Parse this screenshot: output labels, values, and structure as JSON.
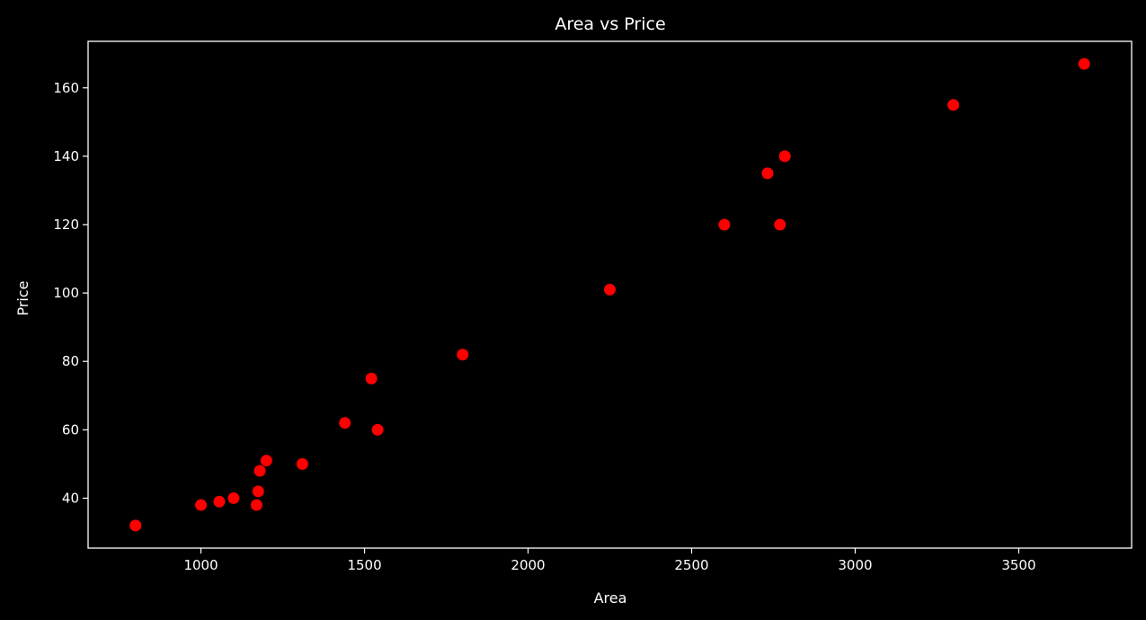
{
  "chart_data": {
    "type": "scatter",
    "title": "Area vs Price",
    "xlabel": "Area",
    "ylabel": "Price",
    "xlim": [
      655,
      3845
    ],
    "ylim": [
      25.4,
      173.6
    ],
    "xticks": [
      1000,
      1500,
      2000,
      2500,
      3000,
      3500
    ],
    "yticks": [
      40,
      60,
      80,
      100,
      120,
      140,
      160
    ],
    "grid": false,
    "background": "#000000",
    "axis_color": "#ffffff",
    "marker_color": "#ff0000",
    "series": [
      {
        "points": [
          {
            "x": 800,
            "y": 32
          },
          {
            "x": 1000,
            "y": 38
          },
          {
            "x": 1056,
            "y": 39
          },
          {
            "x": 1100,
            "y": 40
          },
          {
            "x": 1170,
            "y": 38
          },
          {
            "x": 1175,
            "y": 42
          },
          {
            "x": 1180,
            "y": 48
          },
          {
            "x": 1200,
            "y": 51
          },
          {
            "x": 1310,
            "y": 50
          },
          {
            "x": 1440,
            "y": 62
          },
          {
            "x": 1521,
            "y": 75
          },
          {
            "x": 1540,
            "y": 60
          },
          {
            "x": 1800,
            "y": 82
          },
          {
            "x": 2250,
            "y": 101
          },
          {
            "x": 2600,
            "y": 120
          },
          {
            "x": 2732,
            "y": 135
          },
          {
            "x": 2770,
            "y": 120
          },
          {
            "x": 2785,
            "y": 140
          },
          {
            "x": 3300,
            "y": 155
          },
          {
            "x": 3700,
            "y": 167
          }
        ]
      }
    ]
  }
}
